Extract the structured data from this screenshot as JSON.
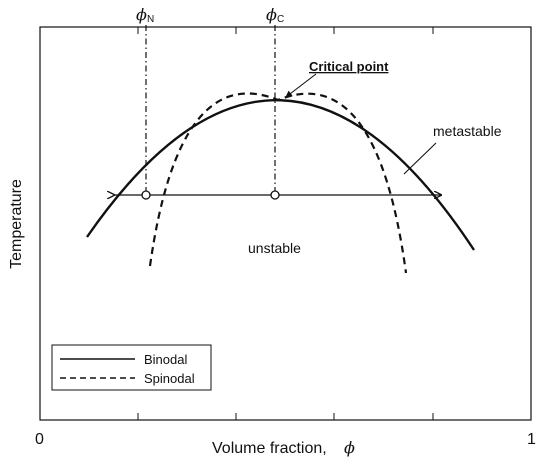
{
  "diagram": {
    "x_axis": {
      "label": "Volume fraction,",
      "symbol": "ϕ",
      "tick_min": "0",
      "tick_max": "1"
    },
    "y_axis": {
      "label": "Temperature"
    },
    "markers": {
      "phi_n": {
        "symbol": "ϕ",
        "subscript": "N"
      },
      "phi_c": {
        "symbol": "ϕ",
        "subscript": "C"
      }
    },
    "annotations": {
      "critical_point": "Critical point",
      "metastable": "metastable",
      "unstable": "unstable"
    },
    "legend": {
      "binodal": "Binodal",
      "spinodal": "Spinodal"
    }
  }
}
